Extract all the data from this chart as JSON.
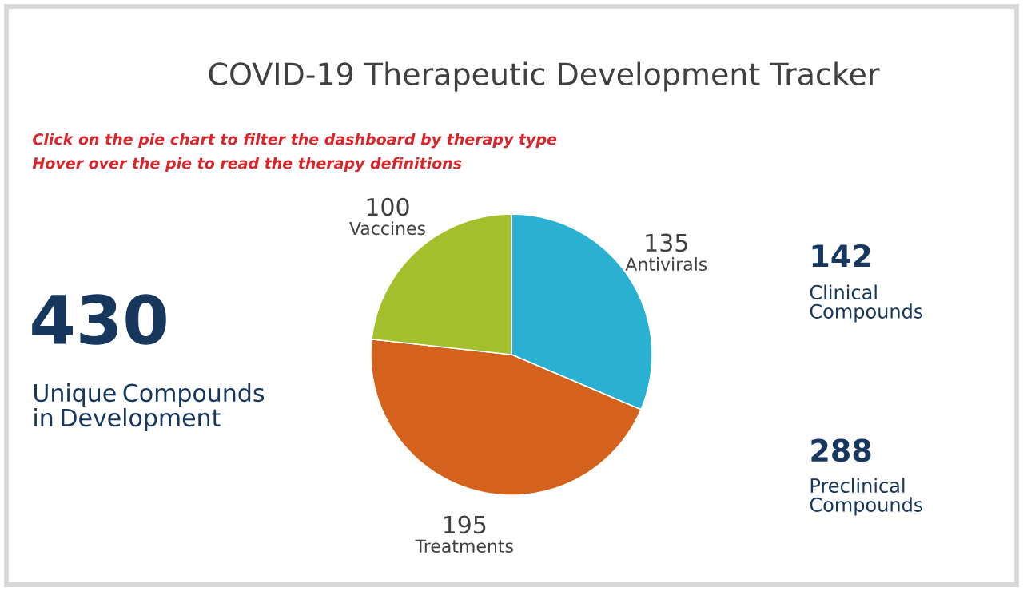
{
  "chart_data": {
    "type": "pie",
    "title": "COVID-19 Therapeutic Development Tracker",
    "categories": [
      "Antivirals",
      "Treatments",
      "Vaccines"
    ],
    "values": [
      135,
      195,
      100
    ],
    "colors": [
      "#2ab0d0",
      "#d4621c",
      "#a4bf2c"
    ],
    "data_labels": true,
    "annotations": [
      "Click on the pie chart to filter the dashboard by therapy type",
      "Hover over the pie to read the therapy definitions",
      "430",
      "Unique Compounds in Development",
      "142",
      "Clinical Compounds",
      "288",
      "Preclinical Compounds"
    ]
  }
}
